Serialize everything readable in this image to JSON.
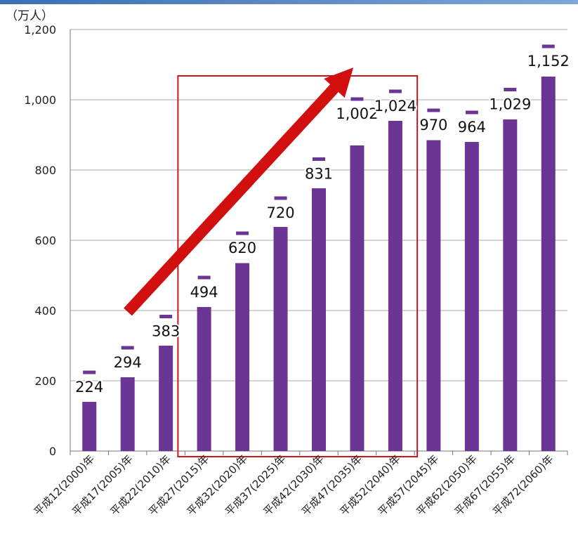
{
  "chart_data": {
    "type": "bar",
    "title": "",
    "ylabel": "（万人）",
    "xlabel": "",
    "ylim": [
      0,
      1200
    ],
    "yticks": [
      0,
      200,
      400,
      600,
      800,
      1000,
      1200
    ],
    "ytick_labels": [
      "0",
      "200",
      "400",
      "600",
      "800",
      "1,000",
      "1,200"
    ],
    "categories": [
      "平成12(2000)年",
      "平成17(2005)年",
      "平成22(2010)年",
      "平成27(2015)年",
      "平成32(2020)年",
      "平成37(2025)年",
      "平成42(2030)年",
      "平成47(2035)年",
      "平成52(2040)年",
      "平成57(2045)年",
      "平成62(2050)年",
      "平成67(2055)年",
      "平成72(2060)年"
    ],
    "series": [
      {
        "values": [
          140,
          210,
          300,
          410,
          535,
          638,
          748,
          870,
          940,
          885,
          880,
          944,
          1066
        ]
      },
      {
        "values": [
          224,
          294,
          383,
          494,
          620,
          720,
          831,
          1002,
          1024,
          970,
          964,
          1029,
          1152
        ]
      }
    ],
    "data_labels": [
      "224",
      "294",
      "383",
      "494",
      "620",
      "720",
      "831",
      "1,002",
      "1,024",
      "970",
      "964",
      "1,029",
      "1,152"
    ],
    "grid": true,
    "colors": {
      "bar": "#6b3596",
      "marker": "#6b3596",
      "highlight_box": "#c8171c",
      "arrow": "#d10f0f",
      "grid": "#a8a8a8"
    },
    "annotations": {
      "highlight_box_range": [
        "平成27(2015)年",
        "平成52(2040)年"
      ],
      "arrow": "up-right"
    }
  }
}
